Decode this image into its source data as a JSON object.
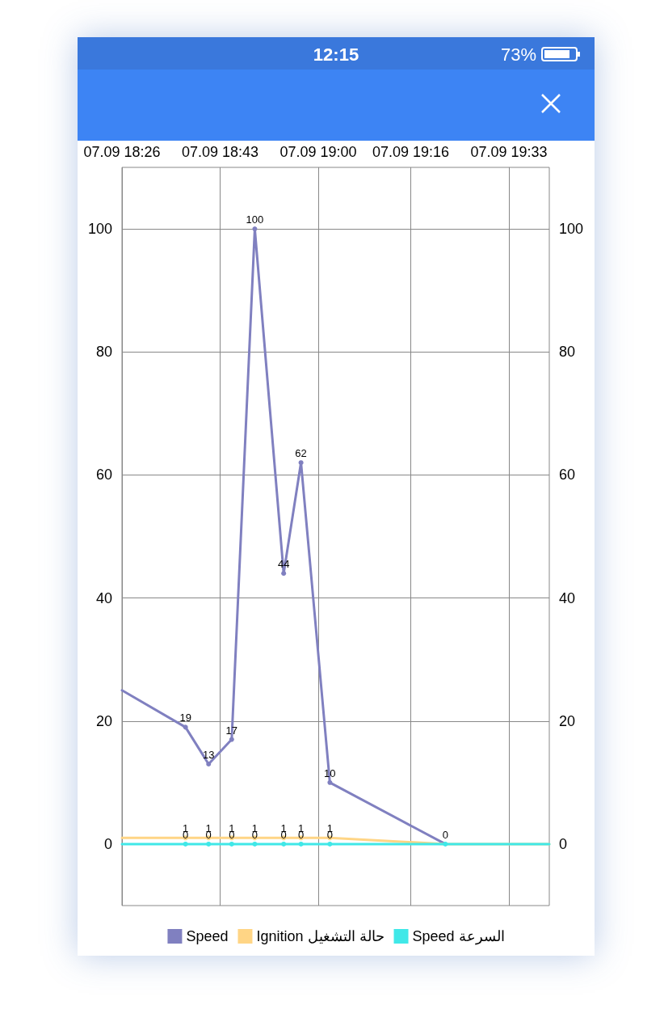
{
  "chart_data": {
    "type": "line",
    "annotations": [
      "12:15",
      "73%"
    ],
    "xlim": [
      "--09-07T18:26",
      "--09-07T19:40"
    ],
    "xticks": [
      {
        "value": "--09-07T18:26",
        "label": "07.09 18:26"
      },
      {
        "value": "--09-07T18:43",
        "label": "07.09 18:43"
      },
      {
        "value": "--09-07T19:00",
        "label": "07.09 19:00"
      },
      {
        "value": "--09-07T19:16",
        "label": "07.09 19:16"
      },
      {
        "value": "--09-07T19:33",
        "label": "07.09 19:33"
      }
    ],
    "ylim": [
      -10,
      110
    ],
    "yticks": [
      0,
      20,
      40,
      60,
      80,
      100
    ],
    "y2lim": [
      -10,
      110
    ],
    "y2ticks": [
      0,
      20,
      40,
      60,
      80,
      100
    ],
    "series": [
      {
        "name": "Speed",
        "color": "#8080c0",
        "x": [
          "--09-07T18:26",
          "--09-07T18:37",
          "--09-07T18:41",
          "--09-07T18:45",
          "--09-07T18:49",
          "--09-07T18:54",
          "--09-07T18:57",
          "--09-07T19:02",
          "--09-07T19:22"
        ],
        "values": [
          25,
          19,
          13,
          17,
          100,
          44,
          62,
          10,
          0
        ],
        "value_labels": [
          null,
          "19",
          "13",
          "17",
          "100",
          "44",
          "62",
          "10",
          null
        ]
      },
      {
        "name": "Ignition حالة التشغيل",
        "color": "#ffd585",
        "x": [
          "--09-07T18:26",
          "--09-07T18:37",
          "--09-07T18:41",
          "--09-07T18:45",
          "--09-07T18:49",
          "--09-07T18:54",
          "--09-07T18:57",
          "--09-07T19:02",
          "--09-07T19:22",
          "--09-07T19:40"
        ],
        "values": [
          1,
          1,
          1,
          1,
          1,
          1,
          1,
          1,
          0,
          0
        ],
        "value_labels": [
          null,
          "1",
          "1",
          "1",
          "1",
          "1",
          "1",
          "1",
          null,
          null
        ]
      },
      {
        "name": "Speed السرعة",
        "color": "#40e8e8",
        "x": [
          "--09-07T18:26",
          "--09-07T18:37",
          "--09-07T18:41",
          "--09-07T18:45",
          "--09-07T18:49",
          "--09-07T18:54",
          "--09-07T18:57",
          "--09-07T19:02",
          "--09-07T19:22",
          "--09-07T19:40"
        ],
        "values": [
          0,
          0,
          0,
          0,
          0,
          0,
          0,
          0,
          0,
          0
        ],
        "value_labels": [
          null,
          "0",
          "0",
          "0",
          "0",
          "0",
          "0",
          "0",
          "0",
          null
        ],
        "axis": "y2"
      }
    ],
    "grid": true,
    "legend": "bottom",
    "marker": "circle",
    "line_style": "solid"
  }
}
